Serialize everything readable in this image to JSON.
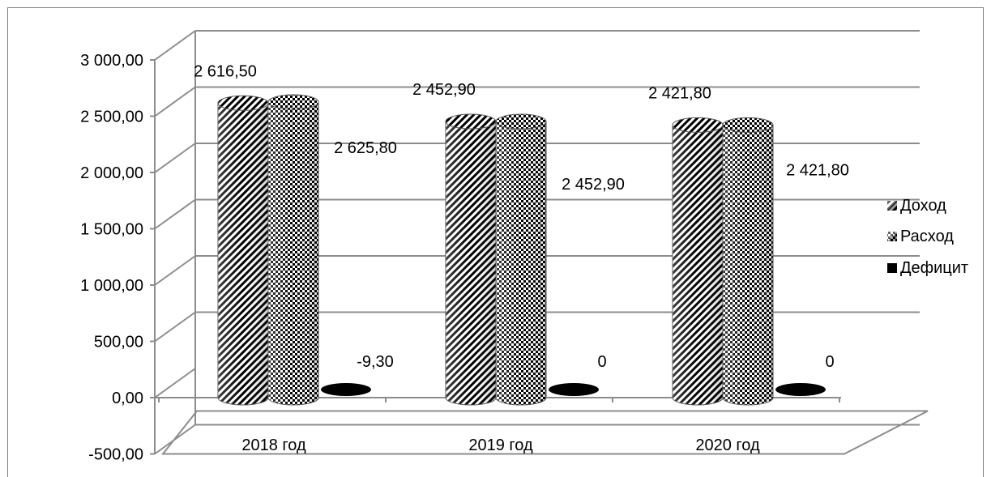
{
  "chart_data": {
    "type": "bar",
    "title": "",
    "xlabel": "",
    "ylabel": "",
    "ylim": [
      -500,
      3000
    ],
    "ytick_step": 500,
    "ytick_labels": [
      "-500,00",
      "0,00",
      "500,00",
      "1 000,00",
      "1 500,00",
      "2 000,00",
      "2 500,00",
      "3 000,00"
    ],
    "grid": true,
    "legend_position": "right",
    "categories": [
      "2018 год",
      "2019 год",
      "2020 год"
    ],
    "series": [
      {
        "name": "Доход",
        "values": [
          2616.5,
          2452.9,
          2421.8
        ],
        "labels": [
          "2 616,50",
          "2 452,90",
          "2 421,80"
        ],
        "pattern": "diagonal-stripes",
        "color": "#000000"
      },
      {
        "name": "Расход",
        "values": [
          2625.8,
          2452.9,
          2421.8
        ],
        "labels": [
          "2 625,80",
          "2 452,90",
          "2 421,80"
        ],
        "pattern": "checkerboard",
        "color": "#000000"
      },
      {
        "name": "Дефицит",
        "values": [
          -9.3,
          0,
          0
        ],
        "labels": [
          "-9,30",
          "0",
          "0"
        ],
        "pattern": "solid",
        "color": "#000000"
      }
    ]
  }
}
